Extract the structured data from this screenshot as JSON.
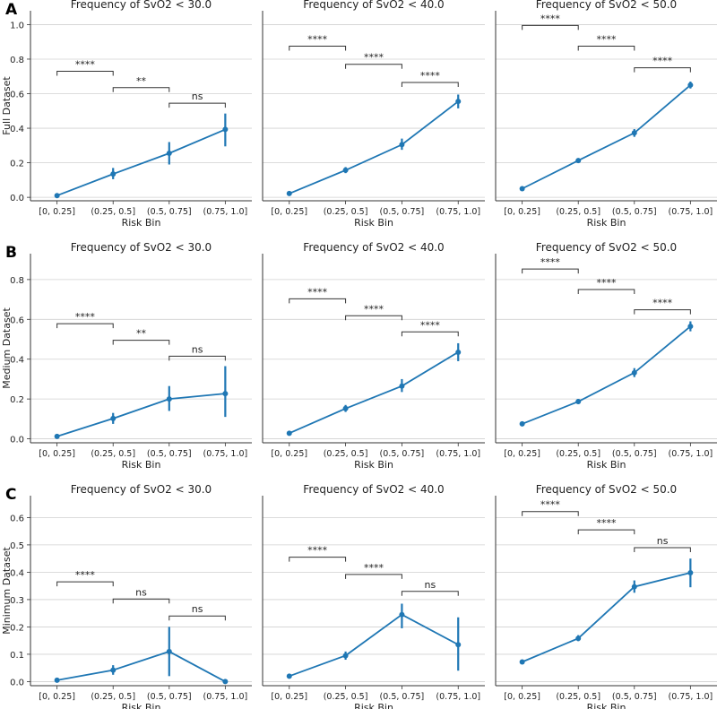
{
  "chart_data": {
    "type": "line",
    "series_color": "#1f77b4",
    "row_letters": [
      "A",
      "B",
      "C"
    ],
    "row_ylabels": [
      "Full Dataset",
      "Medium Dataset",
      "Minimum Dataset"
    ],
    "categories": [
      "[0, 0.25]",
      "(0.25, 0.5]",
      "(0.5, 0.75]",
      "(0.75, 1.0]"
    ],
    "xlabel": "Risk Bin",
    "row_yticks": [
      [
        "0.0",
        "0.2",
        "0.4",
        "0.6",
        "0.8",
        "1.0"
      ],
      [
        "0.0",
        "0.2",
        "0.4",
        "0.6",
        "0.8"
      ],
      [
        "0.0",
        "0.1",
        "0.2",
        "0.3",
        "0.4",
        "0.5",
        "0.6"
      ]
    ],
    "row_ylim": [
      [
        -0.02,
        1.08
      ],
      [
        -0.02,
        0.93
      ],
      [
        -0.015,
        0.68
      ]
    ],
    "panels": [
      {
        "row": 0,
        "col": 0,
        "title": "Frequency of SvO2 < 30.0",
        "values": [
          0.01,
          0.135,
          0.255,
          0.393
        ],
        "err": [
          [
            0.005,
            0.015
          ],
          [
            0.105,
            0.17
          ],
          [
            0.19,
            0.32
          ],
          [
            0.295,
            0.485
          ]
        ],
        "sig": [
          {
            "from": 0,
            "to": 1,
            "y": 0.73,
            "label": "****"
          },
          {
            "from": 1,
            "to": 2,
            "y": 0.635,
            "label": "**"
          },
          {
            "from": 2,
            "to": 3,
            "y": 0.545,
            "label": "ns"
          }
        ]
      },
      {
        "row": 0,
        "col": 1,
        "title": "Frequency of SvO2 < 40.0",
        "values": [
          0.022,
          0.157,
          0.305,
          0.555
        ],
        "err": [
          [
            0.015,
            0.03
          ],
          [
            0.14,
            0.175
          ],
          [
            0.275,
            0.34
          ],
          [
            0.515,
            0.595
          ]
        ],
        "sig": [
          {
            "from": 0,
            "to": 1,
            "y": 0.875,
            "label": "****"
          },
          {
            "from": 1,
            "to": 2,
            "y": 0.77,
            "label": "****"
          },
          {
            "from": 2,
            "to": 3,
            "y": 0.665,
            "label": "****"
          }
        ]
      },
      {
        "row": 0,
        "col": 2,
        "title": "Frequency of SvO2 < 50.0",
        "values": [
          0.05,
          0.213,
          0.373,
          0.65
        ],
        "err": [
          [
            0.042,
            0.058
          ],
          [
            0.2,
            0.226
          ],
          [
            0.35,
            0.395
          ],
          [
            0.63,
            0.67
          ]
        ],
        "sig": [
          {
            "from": 0,
            "to": 1,
            "y": 0.995,
            "label": "****"
          },
          {
            "from": 1,
            "to": 2,
            "y": 0.875,
            "label": "****"
          },
          {
            "from": 2,
            "to": 3,
            "y": 0.75,
            "label": "****"
          }
        ]
      },
      {
        "row": 1,
        "col": 0,
        "title": "Frequency of SvO2 < 30.0",
        "values": [
          0.012,
          0.102,
          0.2,
          0.227
        ],
        "err": [
          [
            0.005,
            0.018
          ],
          [
            0.075,
            0.13
          ],
          [
            0.14,
            0.265
          ],
          [
            0.11,
            0.365
          ]
        ],
        "sig": [
          {
            "from": 0,
            "to": 1,
            "y": 0.578,
            "label": "****"
          },
          {
            "from": 1,
            "to": 2,
            "y": 0.495,
            "label": "**"
          },
          {
            "from": 2,
            "to": 3,
            "y": 0.415,
            "label": "ns"
          }
        ]
      },
      {
        "row": 1,
        "col": 1,
        "title": "Frequency of SvO2 < 40.0",
        "values": [
          0.028,
          0.152,
          0.265,
          0.435
        ],
        "err": [
          [
            0.022,
            0.034
          ],
          [
            0.135,
            0.17
          ],
          [
            0.235,
            0.3
          ],
          [
            0.39,
            0.48
          ]
        ],
        "sig": [
          {
            "from": 0,
            "to": 1,
            "y": 0.703,
            "label": "****"
          },
          {
            "from": 1,
            "to": 2,
            "y": 0.618,
            "label": "****"
          },
          {
            "from": 2,
            "to": 3,
            "y": 0.537,
            "label": "****"
          }
        ]
      },
      {
        "row": 1,
        "col": 2,
        "title": "Frequency of SvO2 < 50.0",
        "values": [
          0.075,
          0.187,
          0.332,
          0.565
        ],
        "err": [
          [
            0.068,
            0.082
          ],
          [
            0.175,
            0.2
          ],
          [
            0.31,
            0.355
          ],
          [
            0.54,
            0.59
          ]
        ],
        "sig": [
          {
            "from": 0,
            "to": 1,
            "y": 0.853,
            "label": "****"
          },
          {
            "from": 1,
            "to": 2,
            "y": 0.75,
            "label": "****"
          },
          {
            "from": 2,
            "to": 3,
            "y": 0.648,
            "label": "****"
          }
        ]
      },
      {
        "row": 2,
        "col": 0,
        "title": "Frequency of SvO2 < 30.0",
        "values": [
          0.005,
          0.042,
          0.11,
          0.0
        ],
        "err": [
          [
            0.002,
            0.008
          ],
          [
            0.025,
            0.06
          ],
          [
            0.02,
            0.2
          ],
          [
            0.0,
            0.003
          ]
        ],
        "sig": [
          {
            "from": 0,
            "to": 1,
            "y": 0.365,
            "label": "****"
          },
          {
            "from": 1,
            "to": 2,
            "y": 0.302,
            "label": "ns"
          },
          {
            "from": 2,
            "to": 3,
            "y": 0.24,
            "label": "ns"
          }
        ]
      },
      {
        "row": 2,
        "col": 1,
        "title": "Frequency of SvO2 < 40.0",
        "values": [
          0.02,
          0.095,
          0.245,
          0.135
        ],
        "err": [
          [
            0.015,
            0.025
          ],
          [
            0.08,
            0.11
          ],
          [
            0.195,
            0.285
          ],
          [
            0.04,
            0.235
          ]
        ],
        "sig": [
          {
            "from": 0,
            "to": 1,
            "y": 0.455,
            "label": "****"
          },
          {
            "from": 1,
            "to": 2,
            "y": 0.392,
            "label": "****"
          },
          {
            "from": 2,
            "to": 3,
            "y": 0.33,
            "label": "ns"
          }
        ]
      },
      {
        "row": 2,
        "col": 2,
        "title": "Frequency of SvO2 < 50.0",
        "values": [
          0.072,
          0.158,
          0.347,
          0.398
        ],
        "err": [
          [
            0.064,
            0.08
          ],
          [
            0.148,
            0.17
          ],
          [
            0.325,
            0.37
          ],
          [
            0.345,
            0.45
          ]
        ],
        "sig": [
          {
            "from": 0,
            "to": 1,
            "y": 0.622,
            "label": "****"
          },
          {
            "from": 1,
            "to": 2,
            "y": 0.555,
            "label": "****"
          },
          {
            "from": 2,
            "to": 3,
            "y": 0.49,
            "label": "ns"
          }
        ]
      }
    ]
  }
}
